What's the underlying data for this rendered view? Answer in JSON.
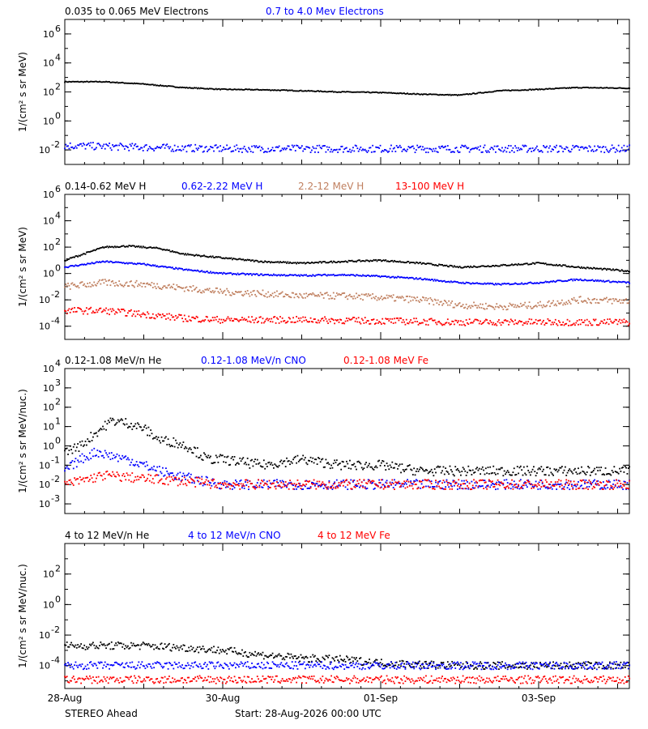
{
  "footer": {
    "spacecraft": "STEREO Ahead",
    "start": "Start: 28-Aug-2026 00:00 UTC",
    "dates": [
      "28-Aug",
      "30-Aug",
      "01-Sep",
      "03-Sep"
    ]
  },
  "chart_data": [
    {
      "type": "scatter",
      "ylog": true,
      "ylim_log10": [
        -3,
        7
      ],
      "xlim_days": [
        0,
        7.15
      ],
      "ylabel": "1/(cm² s sr MeV)",
      "ytick_exponents": [
        -2,
        0,
        2,
        4,
        6
      ],
      "series": [
        {
          "name": "0.035 to 0.065 MeV Electrons",
          "color": "#000000",
          "x": [
            0,
            0.5,
            1,
            1.5,
            2,
            2.5,
            3,
            3.5,
            4,
            4.5,
            5,
            5.5,
            6,
            6.5,
            7.15
          ],
          "values": [
            500,
            500,
            350,
            200,
            150,
            140,
            120,
            100,
            90,
            70,
            60,
            120,
            150,
            200,
            180
          ]
        },
        {
          "name": "0.7 to 4.0 Mev Electrons",
          "color": "#0000ff",
          "x": [
            0,
            1,
            2,
            3,
            4,
            5,
            6,
            7.15
          ],
          "values": [
            0.02,
            0.015,
            0.012,
            0.012,
            0.012,
            0.012,
            0.012,
            0.012
          ]
        }
      ]
    },
    {
      "type": "scatter",
      "ylog": true,
      "ylim_log10": [
        -5,
        6
      ],
      "xlim_days": [
        0,
        7.15
      ],
      "ylabel": "1/(cm² s sr MeV)",
      "ytick_exponents": [
        -4,
        -2,
        0,
        2,
        4,
        6
      ],
      "series": [
        {
          "name": "0.14-0.62 MeV H",
          "color": "#000000",
          "x": [
            0,
            0.5,
            0.8,
            1.2,
            1.5,
            2,
            2.5,
            3,
            3.5,
            4,
            4.5,
            5,
            5.5,
            6,
            6.5,
            7.15
          ],
          "values": [
            10,
            100,
            120,
            80,
            30,
            15,
            8,
            6,
            8,
            10,
            6,
            3,
            4,
            6,
            3,
            1.5
          ]
        },
        {
          "name": "0.62-2.22 MeV H",
          "color": "#0000ff",
          "x": [
            0,
            0.5,
            1,
            1.5,
            2,
            2.5,
            3,
            3.5,
            4,
            4.5,
            5,
            5.5,
            6,
            6.5,
            7.15
          ],
          "values": [
            3,
            8,
            5,
            2,
            1,
            0.8,
            0.7,
            0.8,
            0.6,
            0.4,
            0.2,
            0.15,
            0.2,
            0.35,
            0.2
          ]
        },
        {
          "name": "2.2-12 MeV H",
          "color": "#c08060",
          "x": [
            0,
            0.5,
            1,
            1.5,
            2,
            2.5,
            3,
            3.5,
            4,
            4.5,
            5,
            5.5,
            6,
            6.5,
            7.15
          ],
          "values": [
            0.1,
            0.2,
            0.15,
            0.08,
            0.04,
            0.03,
            0.02,
            0.02,
            0.015,
            0.01,
            0.004,
            0.003,
            0.004,
            0.01,
            0.008
          ]
        },
        {
          "name": "13-100 MeV H",
          "color": "#ff0000",
          "x": [
            0,
            0.5,
            1,
            1.5,
            2,
            3,
            4,
            5,
            6,
            7.15
          ],
          "values": [
            0.0015,
            0.0015,
            0.0008,
            0.0004,
            0.0003,
            0.0003,
            0.00025,
            0.0002,
            0.0002,
            0.0002
          ]
        }
      ]
    },
    {
      "type": "scatter",
      "ylog": true,
      "ylim_log10": [
        -3.5,
        4
      ],
      "xlim_days": [
        0,
        7.15
      ],
      "ylabel": "1/(cm² s sr MeV/nuc.)",
      "ytick_exponents": [
        -3,
        -2,
        -1,
        0,
        1,
        2,
        3,
        4
      ],
      "series": [
        {
          "name": "0.12-1.08 MeV/n He",
          "color": "#000000",
          "x": [
            0,
            0.2,
            0.4,
            0.6,
            0.8,
            1,
            1.2,
            1.4,
            1.6,
            1.8,
            2,
            2.5,
            3,
            3.5,
            4,
            4.5,
            5,
            5.5,
            6,
            6.5,
            7.15
          ],
          "values": [
            0.5,
            1,
            5,
            20,
            15,
            8,
            2,
            1.5,
            0.8,
            0.2,
            0.2,
            0.1,
            0.2,
            0.1,
            0.1,
            0.05,
            0.05,
            0.05,
            0.05,
            0.05,
            0.05
          ]
        },
        {
          "name": "0.12-1.08 MeV/n CNO",
          "color": "#0000ff",
          "x": [
            0,
            0.2,
            0.4,
            0.6,
            0.8,
            1,
            1.2,
            1.4,
            1.6,
            2,
            3,
            4,
            5,
            6,
            7.15
          ],
          "values": [
            0.05,
            0.2,
            0.5,
            0.3,
            0.2,
            0.1,
            0.05,
            0.03,
            0.02,
            0.01,
            0.01,
            0.01,
            0.01,
            0.01,
            0.01
          ]
        },
        {
          "name": "0.12-1.08 MeV Fe",
          "color": "#ff0000",
          "x": [
            0,
            0.5,
            1,
            1.5,
            2,
            3,
            4,
            5,
            6,
            7.15
          ],
          "values": [
            0.01,
            0.03,
            0.02,
            0.015,
            0.01,
            0.01,
            0.01,
            0.01,
            0.01,
            0.01
          ]
        }
      ]
    },
    {
      "type": "scatter",
      "ylog": true,
      "ylim_log10": [
        -5.5,
        4
      ],
      "xlim_days": [
        0,
        7.15
      ],
      "ylabel": "1/(cm² s sr MeV/nuc.)",
      "ytick_exponents": [
        -4,
        -2,
        0,
        2
      ],
      "series": [
        {
          "name": "4 to 12 MeV/n He",
          "color": "#000000",
          "x": [
            0,
            0.5,
            1,
            1.5,
            2,
            2.5,
            3,
            3.5,
            4,
            4.5,
            5,
            5.5,
            6,
            6.5,
            7.15
          ],
          "values": [
            0.002,
            0.002,
            0.002,
            0.0015,
            0.001,
            0.0005,
            0.0003,
            0.00025,
            0.00015,
            0.00012,
            0.0001,
            0.0001,
            0.0001,
            0.0001,
            0.0001
          ]
        },
        {
          "name": "4 to 12 MeV/n CNO",
          "color": "#0000ff",
          "x": [
            0,
            1,
            2,
            3,
            4,
            5,
            6,
            7.15
          ],
          "values": [
            0.0001,
            0.0001,
            0.0001,
            0.0001,
            0.0001,
            0.0001,
            0.0001,
            0.0001
          ]
        },
        {
          "name": "4 to 12 MeV Fe",
          "color": "#ff0000",
          "x": [
            0,
            1,
            2,
            3,
            4,
            5,
            6,
            7.15
          ],
          "values": [
            1.2e-05,
            1.2e-05,
            1.2e-05,
            1.2e-05,
            1.2e-05,
            1.2e-05,
            1.2e-05,
            1.2e-05
          ]
        }
      ]
    }
  ]
}
